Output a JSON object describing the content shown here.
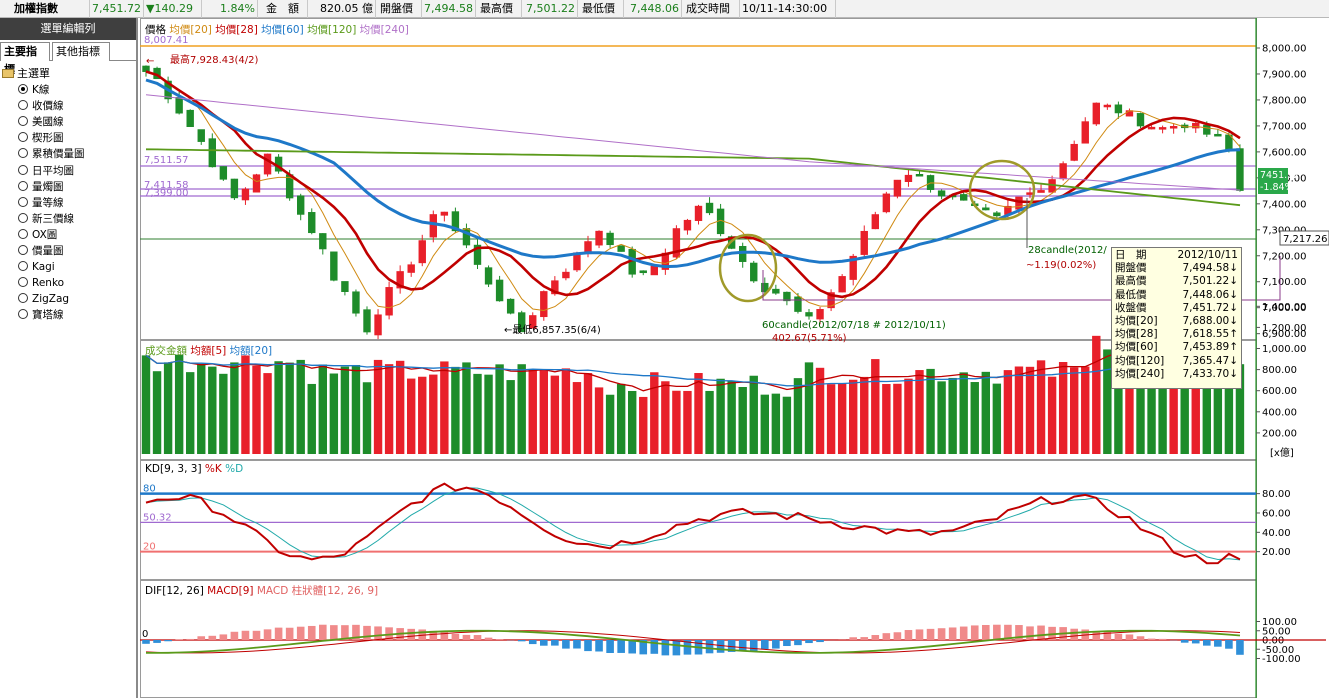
{
  "topbar": {
    "index_name": "加權指數",
    "last": "7,451.72",
    "change": "▼140.29",
    "change_pct": "1.84%",
    "amount_label": "金　額",
    "amount": "820.05 億",
    "open_label": "開盤價",
    "open": "7,494.58",
    "high_label": "最高價",
    "high": "7,501.22",
    "low_label": "最低價",
    "low": "7,448.06",
    "time_label": "成交時間",
    "time": "10/11-14:30:00"
  },
  "sidebar": {
    "title": "選單編輯列",
    "tabs": [
      "主要指標",
      "其他指標"
    ],
    "root": "主選單",
    "items": [
      "K線",
      "收價線",
      "美國線",
      "楔形圖",
      "累積價量圖",
      "日平均圖",
      "量燭圖",
      "量等線",
      "新三價線",
      "OX圖",
      "價量圖",
      "Kagi",
      "Renko",
      "ZigZag",
      "寶塔線"
    ],
    "selected_index": 0
  },
  "price_panel": {
    "legend": [
      {
        "text": "價格",
        "color": "#000000"
      },
      {
        "text": "均價[20]",
        "color": "#d08a12"
      },
      {
        "text": "均價[28]",
        "color": "#c00000"
      },
      {
        "text": "均價[60]",
        "color": "#1e78c8"
      },
      {
        "text": "均價[120]",
        "color": "#5a9a1a"
      },
      {
        "text": "均價[240]",
        "color": "#b070c8"
      }
    ],
    "y_ticks": [
      "8,000.00",
      "7,900.00",
      "7,800.00",
      "7,700.00",
      "7,600.00",
      "7,500.00",
      "7,400.00",
      "7,300.00",
      "7,200.00",
      "7,100.00",
      "7,000.00",
      "6,900.00"
    ],
    "left_labels": [
      "8,007.41",
      "7,511.57",
      "7,411.58",
      "7,399.00"
    ],
    "high_note": "最高7,928.43(4/2)",
    "low_note": "最低6,857.35(6/4)",
    "note_28": "28candle(2012/",
    "note_28_val": "~1.19(0.02%)",
    "note_60": "60candle(2012/07/18 # 2012/10/11)",
    "note_60_val": "402.67(5.71%)",
    "last_box": "7451.72",
    "last_box_pct": "-1.84%",
    "ref_box": "7,217.26"
  },
  "volume_panel": {
    "legend": [
      {
        "text": "成交金額",
        "color": "#5a9a1a"
      },
      {
        "text": "均額[5]",
        "color": "#c00000"
      },
      {
        "text": "均額[20]",
        "color": "#1e78c8"
      }
    ],
    "y_ticks": [
      "1,400.00",
      "1,200.00",
      "1,000.00",
      "800.00",
      "600.00",
      "400.00",
      "200.00"
    ],
    "unit": "[x億]"
  },
  "kd_panel": {
    "legend": [
      {
        "text": "KD[9, 3, 3]",
        "color": "#000000"
      },
      {
        "text": "%K",
        "color": "#c00000"
      },
      {
        "text": "%D",
        "color": "#22aaaa"
      }
    ],
    "left_labels": [
      "80",
      "50.32",
      "20"
    ],
    "y_ticks": [
      "80.00",
      "60.00",
      "40.00",
      "20.00"
    ]
  },
  "macd_panel": {
    "legend": [
      {
        "text": "DIF[12, 26]",
        "color": "#000000"
      },
      {
        "text": "MACD[9]",
        "color": "#c00000"
      },
      {
        "text": "MACD 柱狀體[12, 26, 9]",
        "color": "#e06060"
      }
    ],
    "left_labels": [
      "0"
    ],
    "y_ticks": [
      "100.00",
      "50.00",
      "0.00",
      "-50.00",
      "-100.00"
    ]
  },
  "tooltip": {
    "rows": [
      {
        "label": "日　期",
        "value": "2012/10/11"
      },
      {
        "label": "開盤價",
        "value": "7,494.58↓"
      },
      {
        "label": "最高價",
        "value": "7,501.22↓"
      },
      {
        "label": "最低價",
        "value": "7,448.06↓"
      },
      {
        "label": "收盤價",
        "value": "7,451.72↓"
      },
      {
        "label": "均價[20]",
        "value": "7,688.00↓"
      },
      {
        "label": "均價[28]",
        "value": "7,618.55↑"
      },
      {
        "label": "均價[60]",
        "value": "7,453.89↑"
      },
      {
        "label": "均價[120]",
        "value": "7,365.47↓"
      },
      {
        "label": "均價[240]",
        "value": "7,433.70↓"
      }
    ]
  },
  "colors": {
    "up": "#e8202a",
    "down": "#1e8c2a",
    "ma20": "#d08a12",
    "ma28": "#c00000",
    "ma60": "#1e78c8",
    "ma120": "#5a9a1a",
    "ma240": "#b070c8",
    "macd_pos": "#f08a8a",
    "macd_neg": "#2f8fd8"
  }
}
